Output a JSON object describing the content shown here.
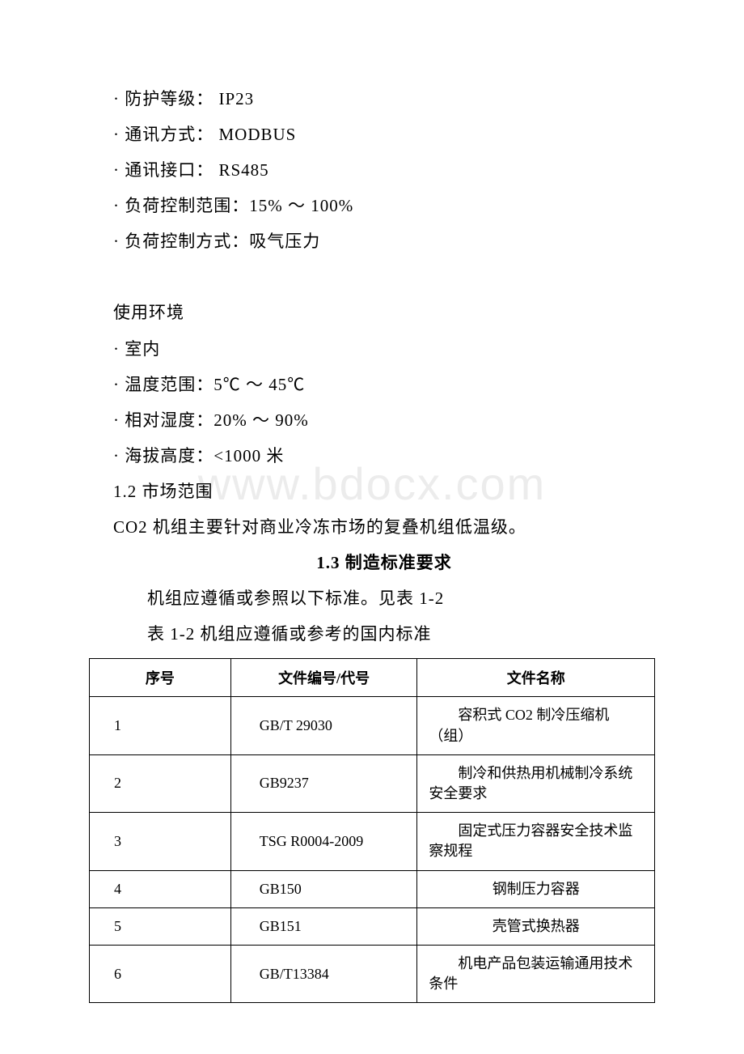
{
  "specs": {
    "protection": "· 防护等级： IP23",
    "comm_mode": "· 通讯方式： MODBUS",
    "comm_interface": "· 通讯接口： RS485",
    "load_range": "· 负荷控制范围：15% ～ 100%",
    "load_control": "· 负荷控制方式：吸气压力"
  },
  "environment": {
    "heading": "使用环境",
    "indoor": "· 室内",
    "temp_range": "· 温度范围：5℃ ～ 45℃",
    "humidity": "· 相对湿度：20% ～ 90%",
    "altitude": "· 海拔高度：<1000 米"
  },
  "market": {
    "heading": "1.2 市场范围",
    "content": "CO2 机组主要针对商业冷冻市场的复叠机组低温级。"
  },
  "standards": {
    "heading": "1.3 制造标准要求",
    "intro": "机组应遵循或参照以下标准。见表 1-2",
    "caption": "表 1-2 机组应遵循或参考的国内标准"
  },
  "table": {
    "headers": {
      "seq": "序号",
      "code": "文件编号/代号",
      "name": "文件名称"
    },
    "rows": [
      {
        "seq": "1",
        "code": "GB/T 29030",
        "name": "容积式 CO2 制冷压缩机（组）",
        "multiline": true
      },
      {
        "seq": "2",
        "code": "GB9237",
        "name": "制冷和供热用机械制冷系统 安全要求",
        "multiline": true
      },
      {
        "seq": "3",
        "code": "TSG R0004-2009",
        "name": "固定式压力容器安全技术监察规程",
        "multiline": true
      },
      {
        "seq": "4",
        "code": "GB150",
        "name": "钢制压力容器",
        "multiline": false
      },
      {
        "seq": "5",
        "code": "GB151",
        "name": "壳管式换热器",
        "multiline": false
      },
      {
        "seq": "6",
        "code": "GB/T13384",
        "name": "机电产品包装运输通用技术条件",
        "multiline": true
      }
    ]
  },
  "watermark": "www.bdocx.com",
  "colors": {
    "background": "#ffffff",
    "text": "#000000",
    "border": "#000000",
    "watermark": "#ececec"
  },
  "typography": {
    "body_fontsize": 21,
    "table_fontsize": 18,
    "watermark_fontsize": 56,
    "font_family": "SimSun"
  }
}
